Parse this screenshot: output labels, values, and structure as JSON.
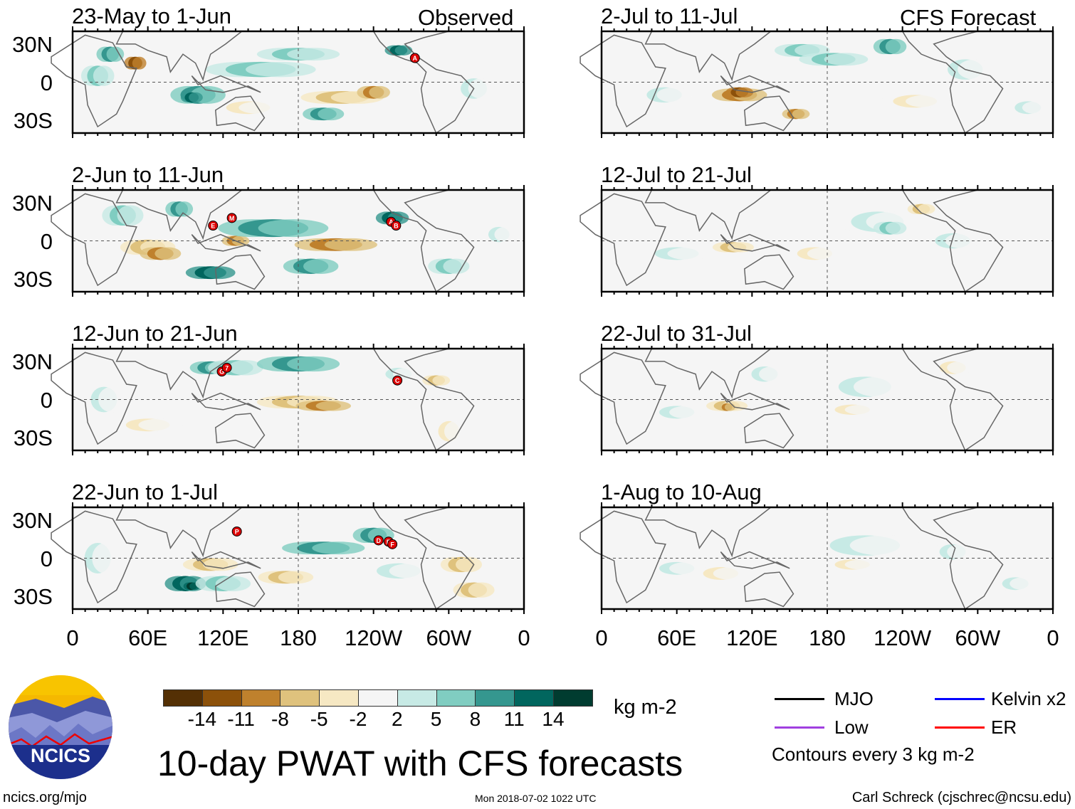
{
  "header": {
    "observed_label": "Observed",
    "forecast_label": "CFS Forecast"
  },
  "panels": [
    {
      "title": "23-May to 1-Jun",
      "kind": "observed",
      "storms": [
        {
          "id": "A",
          "lon": 273,
          "lat": 19
        }
      ]
    },
    {
      "title": "2-Jun to 11-Jun",
      "kind": "observed",
      "storms": [
        {
          "id": "E",
          "lon": 112,
          "lat": 12
        },
        {
          "id": "M",
          "lon": 127,
          "lat": 18
        },
        {
          "id": "A",
          "lon": 254,
          "lat": 15
        },
        {
          "id": "B",
          "lon": 258,
          "lat": 12
        }
      ]
    },
    {
      "title": "12-Jun to 21-Jun",
      "kind": "observed",
      "storms": [
        {
          "id": "G",
          "lon": 119,
          "lat": 22
        },
        {
          "id": "7",
          "lon": 123,
          "lat": 25
        },
        {
          "id": "C",
          "lon": 259,
          "lat": 15
        }
      ]
    },
    {
      "title": "22-Jun to 1-Jul",
      "kind": "observed",
      "storms": [
        {
          "id": "P",
          "lon": 131,
          "lat": 21
        },
        {
          "id": "D",
          "lon": 244,
          "lat": 14
        },
        {
          "id": "E",
          "lon": 252,
          "lat": 13
        },
        {
          "id": "F",
          "lon": 255,
          "lat": 11
        }
      ]
    },
    {
      "title": "2-Jul to 11-Jul",
      "kind": "forecast",
      "storms": []
    },
    {
      "title": "12-Jul to 21-Jul",
      "kind": "forecast",
      "storms": []
    },
    {
      "title": "22-Jul to 31-Jul",
      "kind": "forecast",
      "storms": []
    },
    {
      "title": "1-Aug to 10-Aug",
      "kind": "forecast",
      "storms": []
    }
  ],
  "axes": {
    "y_ticks": [
      "30N",
      "0",
      "30S"
    ],
    "x_ticks": [
      "0",
      "60E",
      "120E",
      "180",
      "120W",
      "60W",
      "0"
    ],
    "lon_range": [
      0,
      360
    ],
    "lat_range": [
      -40,
      40
    ]
  },
  "colorbar": {
    "labels": [
      "-14",
      "-11",
      "-8",
      "-5",
      "-2",
      "2",
      "5",
      "8",
      "11",
      "14"
    ],
    "colors": [
      "#543005",
      "#8c510a",
      "#bf812d",
      "#dfc27d",
      "#f6e8c3",
      "#f5f5f5",
      "#c7eae5",
      "#80cdc1",
      "#35978f",
      "#01665e",
      "#003c30"
    ],
    "units": "kg m-2"
  },
  "legend": {
    "items": [
      {
        "label": "MJO",
        "color": "#000000"
      },
      {
        "label": "Kelvin x2",
        "color": "#0000ff"
      },
      {
        "label": "Low",
        "color": "#a040e0"
      },
      {
        "label": "ER",
        "color": "#ff0000"
      }
    ],
    "contour_note": "Contours every 3 kg m-2"
  },
  "footer": {
    "title": "10-day PWAT with CFS forecasts",
    "logo_text": "NCICS",
    "site": "ncics.org/mjo",
    "timestamp": "Mon 2018-07-02 1022 UTC",
    "author": "Carl Schreck (cjschrec@ncsu.edu)"
  }
}
